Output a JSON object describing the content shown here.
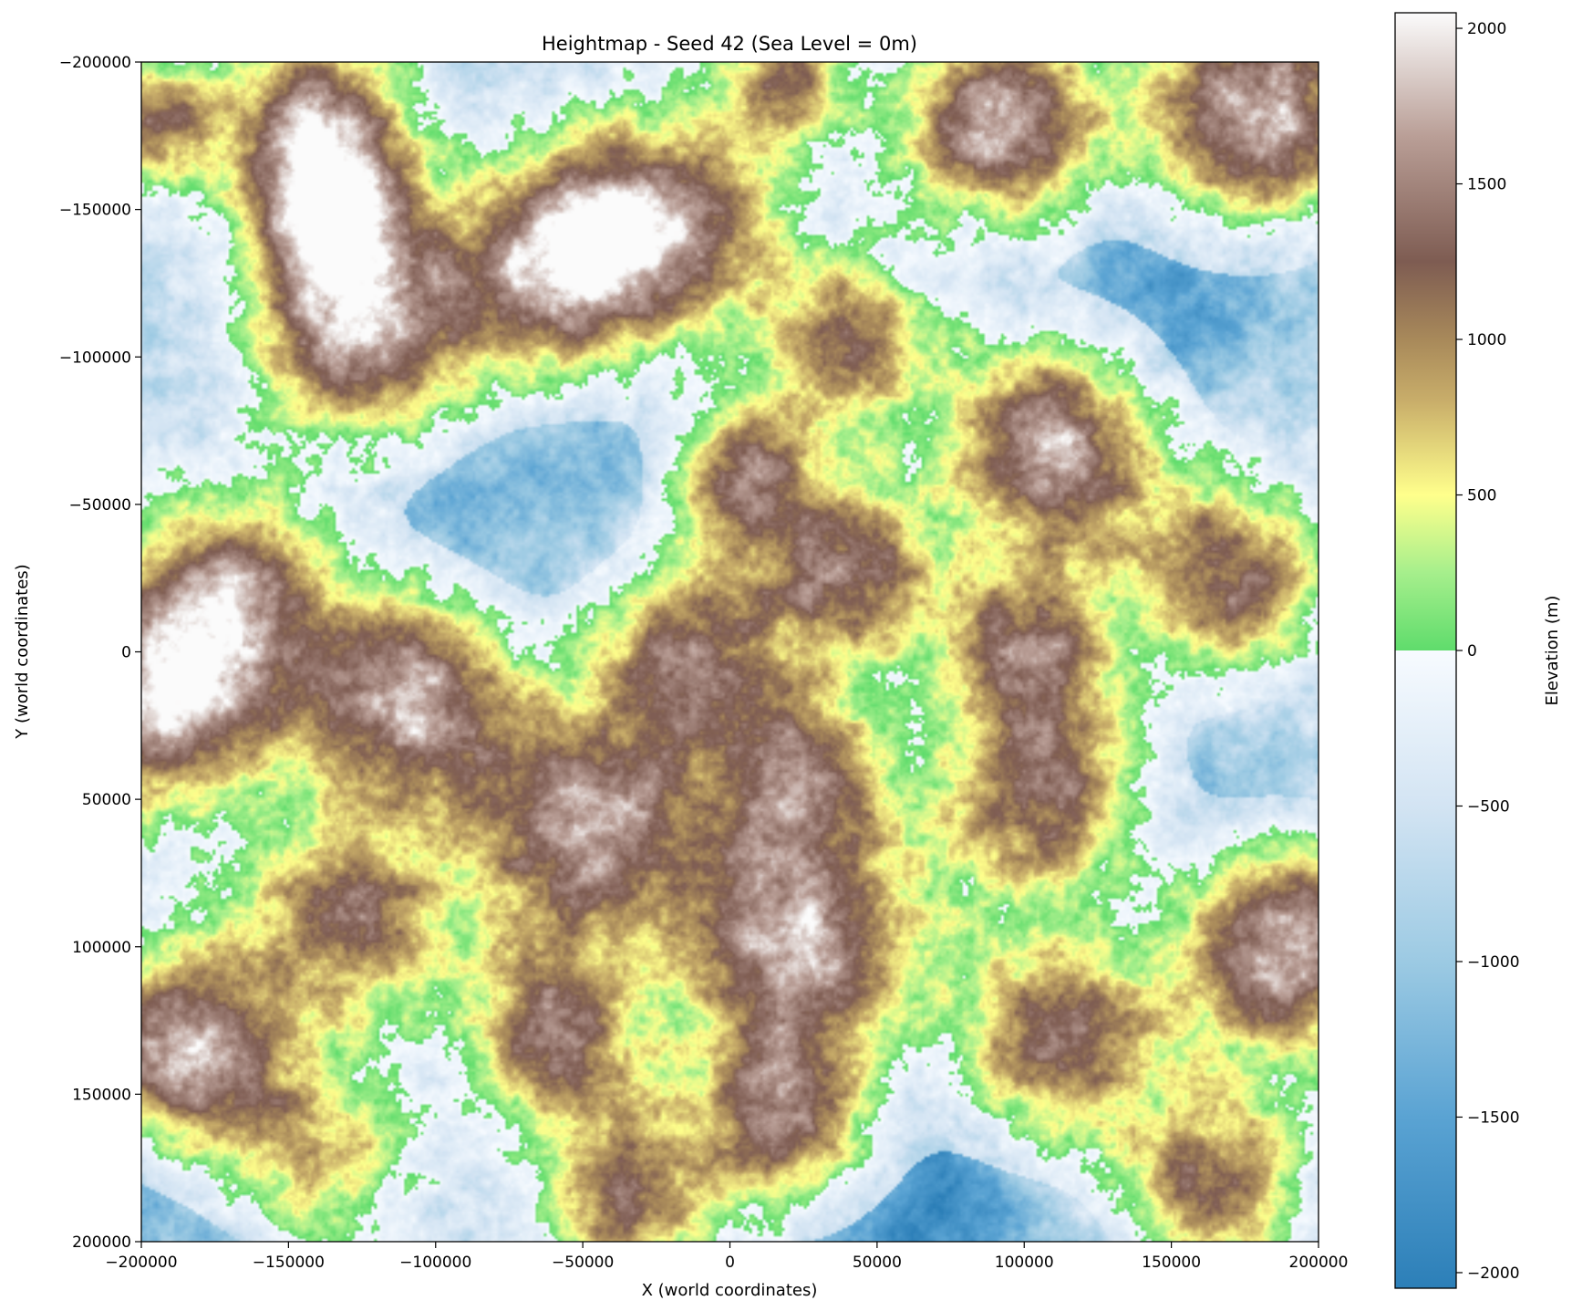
{
  "chart_data": {
    "type": "heatmap",
    "title": "Heightmap - Seed 42 (Sea Level = 0m)",
    "xlabel": "X (world coordinates)",
    "ylabel": "Y (world coordinates)",
    "xlim": [
      -200000,
      200000
    ],
    "ylim": [
      -200000,
      200000
    ],
    "y_inverted": true,
    "grid": false,
    "x_ticks": [
      -200000,
      -150000,
      -100000,
      -50000,
      0,
      50000,
      100000,
      150000,
      200000
    ],
    "x_tick_labels": [
      "−200000",
      "−150000",
      "−100000",
      "−50000",
      "0",
      "50000",
      "100000",
      "150000",
      "200000"
    ],
    "y_ticks": [
      -200000,
      -150000,
      -100000,
      -50000,
      0,
      50000,
      100000,
      150000,
      200000
    ],
    "y_tick_labels": [
      "−200000",
      "−150000",
      "−100000",
      "−50000",
      "0",
      "50000",
      "100000",
      "150000",
      "200000"
    ],
    "colorbar": {
      "label": "Elevation (m)",
      "range": [
        -2050,
        2050
      ],
      "ticks": [
        2000,
        1500,
        1000,
        500,
        0,
        -500,
        -1000,
        -1500,
        -2000
      ],
      "tick_labels": [
        "2000",
        "1500",
        "1000",
        "500",
        "0",
        "−500",
        "−1000",
        "−1500",
        "−2000"
      ],
      "stops": [
        {
          "value": -2050,
          "color": "#2c7fb8"
        },
        {
          "value": -1500,
          "color": "#5aa3d3"
        },
        {
          "value": -1000,
          "color": "#9ccae3"
        },
        {
          "value": -500,
          "color": "#d3e4f3"
        },
        {
          "value": 0,
          "color": "#f7fbff"
        },
        {
          "value": 0,
          "color": "#5fdc6c"
        },
        {
          "value": 250,
          "color": "#a6ef8c"
        },
        {
          "value": 500,
          "color": "#ffff8c"
        },
        {
          "value": 800,
          "color": "#c9ae6a"
        },
        {
          "value": 1000,
          "color": "#a8895a"
        },
        {
          "value": 1250,
          "color": "#7e5c52"
        },
        {
          "value": 1650,
          "color": "#b99e96"
        },
        {
          "value": 2050,
          "color": "#fbfbfb"
        }
      ]
    },
    "landmasses": [
      {
        "x": -140000,
        "y": -180000,
        "peak": 1500,
        "spread": 22000
      },
      {
        "x": -135000,
        "y": -145000,
        "peak": 1400,
        "spread": 20000
      },
      {
        "x": -125000,
        "y": -105000,
        "peak": 1700,
        "spread": 26000
      },
      {
        "x": -195000,
        "y": -180000,
        "peak": 1100,
        "spread": 16000
      },
      {
        "x": -60000,
        "y": -130000,
        "peak": 1600,
        "spread": 26000
      },
      {
        "x": -20000,
        "y": -145000,
        "peak": 1500,
        "spread": 28000
      },
      {
        "x": 20000,
        "y": -195000,
        "peak": 1000,
        "spread": 16000
      },
      {
        "x": 90000,
        "y": -180000,
        "peak": 1900,
        "spread": 24000
      },
      {
        "x": 178000,
        "y": -182000,
        "peak": 1900,
        "spread": 28000
      },
      {
        "x": 40000,
        "y": -105000,
        "peak": 1200,
        "spread": 20000
      },
      {
        "x": 110000,
        "y": -70000,
        "peak": 1800,
        "spread": 26000
      },
      {
        "x": 5000,
        "y": -60000,
        "peak": 1300,
        "spread": 18000
      },
      {
        "x": 40000,
        "y": -25000,
        "peak": 1400,
        "spread": 22000
      },
      {
        "x": 170000,
        "y": -25000,
        "peak": 1300,
        "spread": 24000
      },
      {
        "x": -170000,
        "y": -20000,
        "peak": 1400,
        "spread": 26000
      },
      {
        "x": -195000,
        "y": 20000,
        "peak": 1700,
        "spread": 26000
      },
      {
        "x": -110000,
        "y": 15000,
        "peak": 1700,
        "spread": 26000
      },
      {
        "x": -15000,
        "y": 0,
        "peak": 1300,
        "spread": 22000
      },
      {
        "x": 25000,
        "y": 40000,
        "peak": 1300,
        "spread": 20000
      },
      {
        "x": 100000,
        "y": 0,
        "peak": 1200,
        "spread": 20000
      },
      {
        "x": -50000,
        "y": 60000,
        "peak": 1800,
        "spread": 30000
      },
      {
        "x": 105000,
        "y": 50000,
        "peak": 1400,
        "spread": 26000
      },
      {
        "x": -130000,
        "y": 90000,
        "peak": 1400,
        "spread": 24000
      },
      {
        "x": 25000,
        "y": 100000,
        "peak": 1900,
        "spread": 30000
      },
      {
        "x": 190000,
        "y": 100000,
        "peak": 1900,
        "spread": 26000
      },
      {
        "x": -185000,
        "y": 135000,
        "peak": 1800,
        "spread": 24000
      },
      {
        "x": -60000,
        "y": 130000,
        "peak": 1300,
        "spread": 22000
      },
      {
        "x": 110000,
        "y": 130000,
        "peak": 1500,
        "spread": 26000
      },
      {
        "x": 20000,
        "y": 160000,
        "peak": 1300,
        "spread": 22000
      },
      {
        "x": -35000,
        "y": 185000,
        "peak": 1200,
        "spread": 22000
      },
      {
        "x": 165000,
        "y": 180000,
        "peak": 1200,
        "spread": 22000
      },
      {
        "x": -140000,
        "y": 170000,
        "peak": 700,
        "spread": 24000
      }
    ],
    "basins": [
      {
        "x": -25000,
        "y": -100000,
        "depth": -1800,
        "spread": 30000
      },
      {
        "x": -120000,
        "y": -60000,
        "depth": -1700,
        "spread": 30000
      },
      {
        "x": 60000,
        "y": 130000,
        "depth": -1800,
        "spread": 32000
      },
      {
        "x": 60000,
        "y": 190000,
        "depth": -1800,
        "spread": 34000
      },
      {
        "x": -100000,
        "y": 80000,
        "depth": -1500,
        "spread": 28000
      },
      {
        "x": 160000,
        "y": -140000,
        "depth": -1600,
        "spread": 28000
      },
      {
        "x": 130000,
        "y": -100000,
        "depth": -1600,
        "spread": 26000
      },
      {
        "x": 160000,
        "y": 60000,
        "depth": -1500,
        "spread": 28000
      },
      {
        "x": 110000,
        "y": 90000,
        "depth": -1500,
        "spread": 26000
      },
      {
        "x": -30000,
        "y": 100000,
        "depth": -1400,
        "spread": 28000
      },
      {
        "x": -190000,
        "y": 180000,
        "depth": -1500,
        "spread": 24000
      },
      {
        "x": 60000,
        "y": 30000,
        "depth": -1400,
        "spread": 26000
      },
      {
        "x": -60000,
        "y": -10000,
        "depth": -1200,
        "spread": 30000
      },
      {
        "x": 60000,
        "y": -180000,
        "depth": -1200,
        "spread": 26000
      }
    ]
  }
}
